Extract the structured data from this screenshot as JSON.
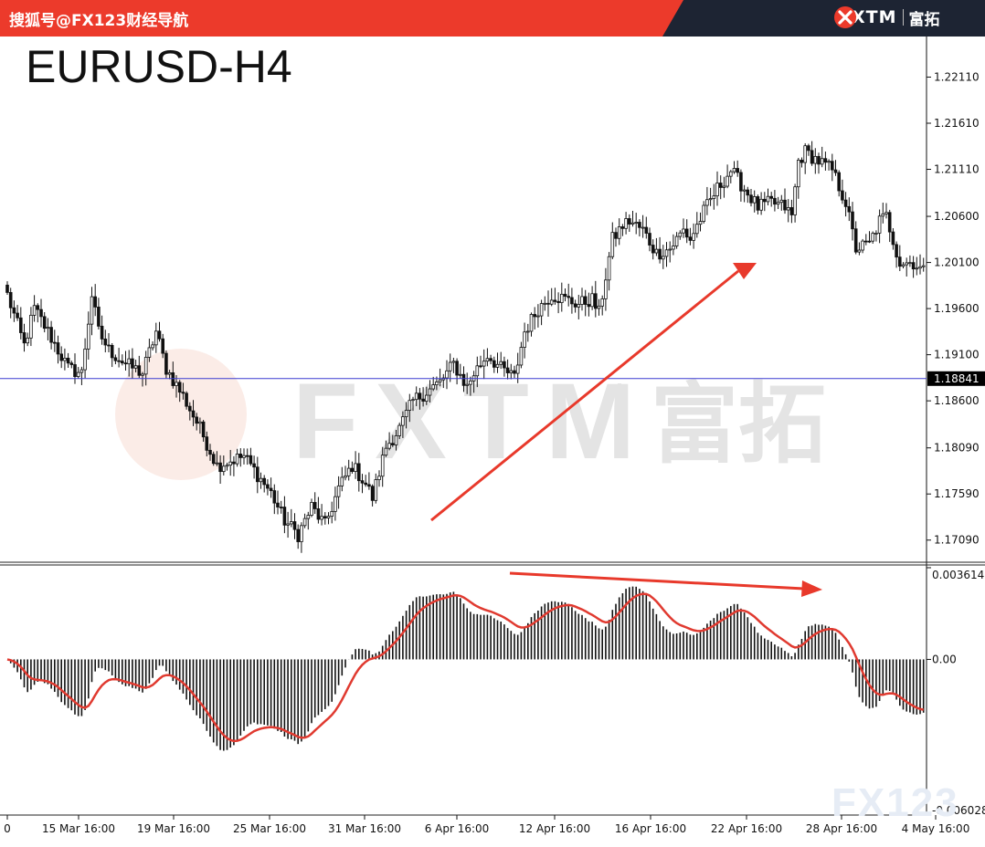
{
  "header": {
    "site_label": "搜狐号@FX123财经导航",
    "brand_name": "FXTM",
    "brand_cn": "富拓",
    "colors": {
      "red": "#ec3a2b",
      "dark": "#1d2433"
    }
  },
  "watermark": {
    "text": "FXTM",
    "cn": "富拓",
    "corner": "FX123"
  },
  "chart_data": {
    "type": "candlestick",
    "title": "EURUSD-H4",
    "price_axis": {
      "ticks": [
        "1.22110",
        "1.21610",
        "1.21110",
        "1.20600",
        "1.20100",
        "1.19600",
        "1.19100",
        "1.18600",
        "1.18090",
        "1.17590",
        "1.17090"
      ],
      "range": [
        1.1685,
        1.2255
      ]
    },
    "current_price": {
      "label": "1.18841",
      "value": 1.18841
    },
    "time_axis": [
      "0",
      "15 Mar 16:00",
      "19 Mar 16:00",
      "25 Mar 16:00",
      "31 Mar 16:00",
      "6 Apr 16:00",
      "12 Apr 16:00",
      "16 Apr 16:00",
      "22 Apr 16:00",
      "28 Apr 16:00",
      "4 May 16:00"
    ],
    "price_keypoints": [
      [
        0,
        1.1975
      ],
      [
        5,
        1.192
      ],
      [
        8,
        1.196
      ],
      [
        12,
        1.1935
      ],
      [
        18,
        1.1895
      ],
      [
        22,
        1.189
      ],
      [
        25,
        1.1975
      ],
      [
        27,
        1.1935
      ],
      [
        30,
        1.1915
      ],
      [
        35,
        1.19
      ],
      [
        40,
        1.189
      ],
      [
        44,
        1.1935
      ],
      [
        47,
        1.1895
      ],
      [
        52,
        1.1865
      ],
      [
        57,
        1.183
      ],
      [
        62,
        1.179
      ],
      [
        66,
        1.1795
      ],
      [
        70,
        1.18
      ],
      [
        74,
        1.178
      ],
      [
        78,
        1.176
      ],
      [
        82,
        1.173
      ],
      [
        86,
        1.1715
      ],
      [
        90,
        1.1745
      ],
      [
        94,
        1.1725
      ],
      [
        98,
        1.1765
      ],
      [
        102,
        1.179
      ],
      [
        106,
        1.177
      ],
      [
        108,
        1.1755
      ],
      [
        112,
        1.181
      ],
      [
        116,
        1.183
      ],
      [
        120,
        1.186
      ],
      [
        124,
        1.187
      ],
      [
        128,
        1.188
      ],
      [
        132,
        1.19
      ],
      [
        136,
        1.1875
      ],
      [
        138,
        1.189
      ],
      [
        142,
        1.191
      ],
      [
        146,
        1.1895
      ],
      [
        150,
        1.1885
      ],
      [
        153,
        1.1935
      ],
      [
        157,
        1.196
      ],
      [
        161,
        1.1975
      ],
      [
        165,
        1.197
      ],
      [
        169,
        1.1965
      ],
      [
        173,
        1.197
      ],
      [
        175,
        1.1955
      ],
      [
        179,
        1.2035
      ],
      [
        182,
        1.205
      ],
      [
        184,
        1.2055
      ],
      [
        188,
        1.2045
      ],
      [
        192,
        1.202
      ],
      [
        196,
        1.2025
      ],
      [
        200,
        1.2045
      ],
      [
        202,
        1.2035
      ],
      [
        206,
        1.2065
      ],
      [
        210,
        1.209
      ],
      [
        214,
        1.211
      ],
      [
        218,
        1.209
      ],
      [
        222,
        1.207
      ],
      [
        226,
        1.2075
      ],
      [
        230,
        1.207
      ],
      [
        232,
        1.206
      ],
      [
        234,
        1.212
      ],
      [
        236,
        1.213
      ],
      [
        240,
        1.212
      ],
      [
        244,
        1.211
      ],
      [
        248,
        1.2075
      ],
      [
        251,
        1.2025
      ],
      [
        255,
        1.203
      ],
      [
        258,
        1.2055
      ],
      [
        260,
        1.206
      ],
      [
        264,
        1.201
      ],
      [
        268,
        1.201
      ],
      [
        271,
        1.2
      ]
    ],
    "macd": {
      "axis_labels": [
        "0.003614",
        "0.00",
        "-0.006028"
      ],
      "range": [
        -0.006028,
        0.003614
      ],
      "zero_label": "0.00"
    },
    "annotations": [
      "red uptrend arrow on price",
      "red downtrend arrow on MACD peaks (bearish divergence)"
    ]
  }
}
